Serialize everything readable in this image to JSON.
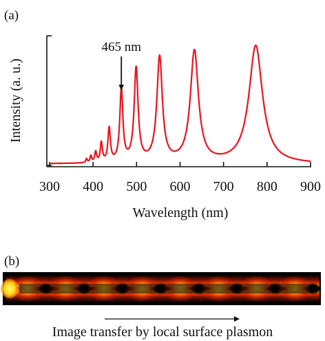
{
  "panel_a": {
    "label": "(a)"
  },
  "panel_b": {
    "label": "(b)",
    "caption": "Image transfer by local surface plasmon"
  },
  "chart_data": {
    "type": "line",
    "title": "",
    "xlabel": "Wavelength (nm)",
    "ylabel": "Intensity (a. u.)",
    "xlim": [
      300,
      900
    ],
    "ylim": [
      0,
      1.0
    ],
    "x_ticks": [
      300,
      400,
      500,
      600,
      700,
      800,
      900
    ],
    "y_ticks_labeled": false,
    "grid": false,
    "series": [
      {
        "color": "#e8141c",
        "baseline": 0.01,
        "peaks": [
          {
            "x": 385,
            "y": 0.04
          },
          {
            "x": 395,
            "y": 0.06
          },
          {
            "x": 406,
            "y": 0.09
          },
          {
            "x": 419,
            "y": 0.16
          },
          {
            "x": 437,
            "y": 0.27
          },
          {
            "x": 465,
            "y": 0.57
          },
          {
            "x": 499,
            "y": 0.73
          },
          {
            "x": 553,
            "y": 0.82
          },
          {
            "x": 633,
            "y": 0.87
          },
          {
            "x": 774,
            "y": 0.92
          }
        ]
      }
    ],
    "annotations": [
      {
        "text": "465 nm",
        "x": 465,
        "arrow": true
      }
    ]
  }
}
